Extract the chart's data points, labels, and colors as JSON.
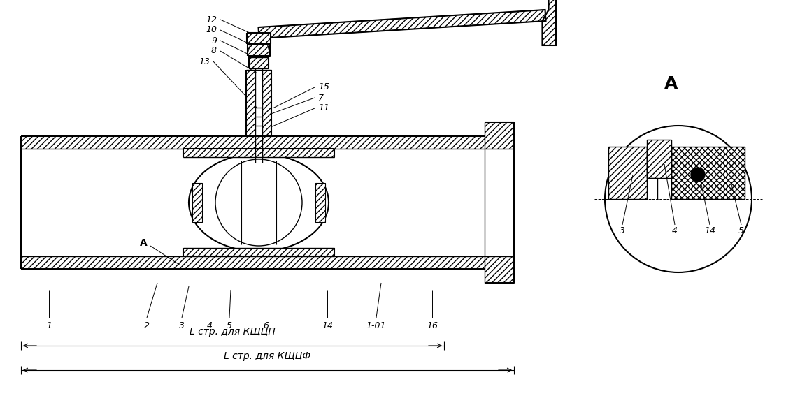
{
  "bg_color": "#ffffff",
  "line_color": "#000000",
  "figsize": [
    11.34,
    6.0
  ],
  "dpi": 100,
  "dim_label1": "L стр. для КЩЦП",
  "dim_label2": "L стр. для КЩЦФ"
}
